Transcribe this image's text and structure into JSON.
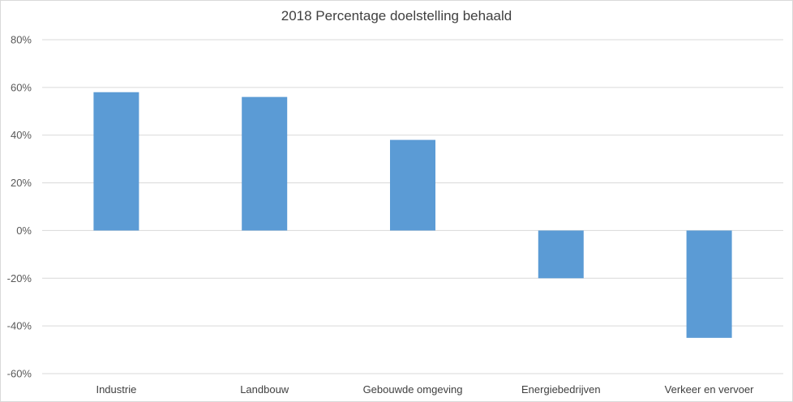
{
  "chart_data": {
    "type": "bar",
    "title": "2018 Percentage doelstelling behaald",
    "categories": [
      "Industrie",
      "Landbouw",
      "Gebouwde omgeving",
      "Energiebedrijven",
      "Verkeer en vervoer"
    ],
    "values": [
      58,
      56,
      38,
      -20,
      -45
    ],
    "ylim": [
      -60,
      80
    ],
    "yticks": [
      80,
      60,
      40,
      20,
      0,
      -20,
      -40,
      -60
    ],
    "ytick_labels": [
      "80%",
      "60%",
      "40%",
      "20%",
      "0%",
      "-20%",
      "-40%",
      "-60%"
    ],
    "xlabel": "",
    "ylabel": "",
    "grid": true,
    "bar_color": "#5b9bd5",
    "grid_color": "#d9d9d9"
  }
}
